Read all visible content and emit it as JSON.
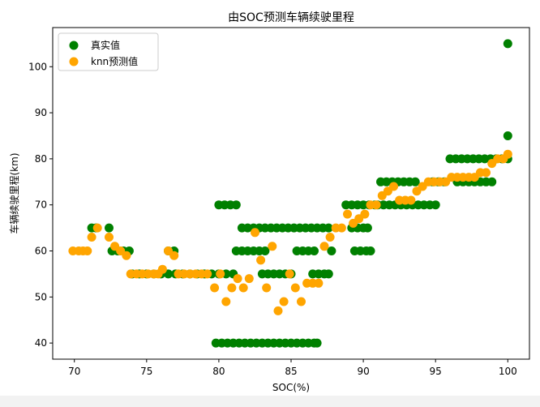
{
  "chart_data": {
    "type": "scatter",
    "title": "由SOC预测车辆续驶里程",
    "xlabel": "SOC(%)",
    "ylabel": "车辆续驶里程(km)",
    "xlim": [
      68.5,
      101.5
    ],
    "ylim": [
      36.5,
      108.5
    ],
    "xticks": [
      70,
      75,
      80,
      85,
      90,
      95,
      100
    ],
    "yticks": [
      40,
      50,
      60,
      70,
      80,
      90,
      100
    ],
    "grid": false,
    "legend_position": "upper-left",
    "series": [
      {
        "name": "真实值",
        "color": "#008000",
        "points": [
          [
            71.2,
            65
          ],
          [
            71.5,
            65
          ],
          [
            72.4,
            65
          ],
          [
            72.6,
            60
          ],
          [
            73.0,
            60
          ],
          [
            73.4,
            60
          ],
          [
            73.8,
            60
          ],
          [
            76.5,
            60
          ],
          [
            76.9,
            60
          ],
          [
            74.0,
            55
          ],
          [
            74.5,
            55
          ],
          [
            75.0,
            55
          ],
          [
            75.5,
            55
          ],
          [
            76.0,
            55
          ],
          [
            76.5,
            55
          ],
          [
            77.0,
            55
          ],
          [
            77.5,
            55
          ],
          [
            78.0,
            55
          ],
          [
            78.5,
            55
          ],
          [
            79.0,
            55
          ],
          [
            79.5,
            55
          ],
          [
            80.0,
            55
          ],
          [
            80.5,
            55
          ],
          [
            81.0,
            55
          ],
          [
            80.0,
            70
          ],
          [
            80.4,
            70
          ],
          [
            80.8,
            70
          ],
          [
            81.2,
            70
          ],
          [
            79.8,
            40
          ],
          [
            80.2,
            40
          ],
          [
            80.6,
            40
          ],
          [
            81.0,
            40
          ],
          [
            81.4,
            40
          ],
          [
            81.8,
            40
          ],
          [
            82.2,
            40
          ],
          [
            82.6,
            40
          ],
          [
            83.0,
            40
          ],
          [
            83.4,
            40
          ],
          [
            83.8,
            40
          ],
          [
            84.2,
            40
          ],
          [
            84.6,
            40
          ],
          [
            85.0,
            40
          ],
          [
            85.4,
            40
          ],
          [
            85.8,
            40
          ],
          [
            86.2,
            40
          ],
          [
            86.6,
            40
          ],
          [
            86.8,
            40
          ],
          [
            81.2,
            60
          ],
          [
            81.6,
            60
          ],
          [
            82.0,
            60
          ],
          [
            82.4,
            60
          ],
          [
            82.8,
            60
          ],
          [
            83.2,
            60
          ],
          [
            81.6,
            65
          ],
          [
            82.0,
            65
          ],
          [
            82.4,
            65
          ],
          [
            82.8,
            65
          ],
          [
            83.2,
            65
          ],
          [
            83.6,
            65
          ],
          [
            84.0,
            65
          ],
          [
            84.4,
            65
          ],
          [
            84.8,
            65
          ],
          [
            85.2,
            65
          ],
          [
            85.6,
            65
          ],
          [
            86.0,
            65
          ],
          [
            86.4,
            65
          ],
          [
            86.8,
            65
          ],
          [
            87.2,
            65
          ],
          [
            87.6,
            65
          ],
          [
            83.0,
            55
          ],
          [
            83.4,
            55
          ],
          [
            83.8,
            55
          ],
          [
            84.2,
            55
          ],
          [
            84.6,
            55
          ],
          [
            85.0,
            55
          ],
          [
            85.4,
            60
          ],
          [
            85.8,
            60
          ],
          [
            86.2,
            60
          ],
          [
            86.6,
            60
          ],
          [
            86.5,
            55
          ],
          [
            86.9,
            55
          ],
          [
            87.3,
            55
          ],
          [
            87.6,
            55
          ],
          [
            87.8,
            60
          ],
          [
            88.8,
            70
          ],
          [
            89.2,
            70
          ],
          [
            89.6,
            70
          ],
          [
            90.0,
            70
          ],
          [
            90.4,
            70
          ],
          [
            90.8,
            70
          ],
          [
            89.2,
            65
          ],
          [
            89.6,
            65
          ],
          [
            90.0,
            65
          ],
          [
            90.3,
            65
          ],
          [
            89.4,
            60
          ],
          [
            89.8,
            60
          ],
          [
            90.2,
            60
          ],
          [
            90.5,
            60
          ],
          [
            91.2,
            75
          ],
          [
            91.6,
            75
          ],
          [
            92.0,
            75
          ],
          [
            92.4,
            75
          ],
          [
            92.8,
            75
          ],
          [
            93.2,
            75
          ],
          [
            93.6,
            75
          ],
          [
            91.0,
            70
          ],
          [
            91.4,
            70
          ],
          [
            91.8,
            70
          ],
          [
            92.2,
            70
          ],
          [
            92.6,
            70
          ],
          [
            93.0,
            70
          ],
          [
            93.4,
            70
          ],
          [
            93.8,
            70
          ],
          [
            94.2,
            70
          ],
          [
            94.6,
            70
          ],
          [
            95.0,
            70
          ],
          [
            94.8,
            75
          ],
          [
            95.2,
            75
          ],
          [
            95.6,
            75
          ],
          [
            96.0,
            80
          ],
          [
            96.4,
            80
          ],
          [
            96.8,
            80
          ],
          [
            97.2,
            80
          ],
          [
            97.6,
            80
          ],
          [
            98.0,
            80
          ],
          [
            98.4,
            80
          ],
          [
            98.8,
            80
          ],
          [
            96.5,
            75
          ],
          [
            96.9,
            75
          ],
          [
            97.3,
            75
          ],
          [
            97.7,
            75
          ],
          [
            98.1,
            75
          ],
          [
            98.5,
            75
          ],
          [
            98.9,
            75
          ],
          [
            99.2,
            80
          ],
          [
            99.6,
            80
          ],
          [
            100.0,
            80
          ],
          [
            100.0,
            85
          ],
          [
            100.0,
            105
          ]
        ]
      },
      {
        "name": "knn预测值",
        "color": "#ffa500",
        "points": [
          [
            69.9,
            60
          ],
          [
            70.3,
            60
          ],
          [
            70.6,
            60
          ],
          [
            70.9,
            60
          ],
          [
            71.2,
            63
          ],
          [
            71.6,
            65
          ],
          [
            72.4,
            63
          ],
          [
            72.8,
            61
          ],
          [
            73.2,
            60
          ],
          [
            73.6,
            59
          ],
          [
            73.9,
            55
          ],
          [
            74.3,
            55
          ],
          [
            74.7,
            55
          ],
          [
            75.1,
            55
          ],
          [
            75.5,
            55
          ],
          [
            75.8,
            55
          ],
          [
            76.1,
            56
          ],
          [
            76.5,
            60
          ],
          [
            76.9,
            59
          ],
          [
            77.2,
            55
          ],
          [
            77.6,
            55
          ],
          [
            78.0,
            55
          ],
          [
            78.4,
            55
          ],
          [
            78.8,
            55
          ],
          [
            79.2,
            55
          ],
          [
            79.7,
            52
          ],
          [
            80.1,
            55
          ],
          [
            80.5,
            49
          ],
          [
            80.9,
            52
          ],
          [
            81.3,
            54
          ],
          [
            81.7,
            52
          ],
          [
            82.1,
            54
          ],
          [
            82.5,
            64
          ],
          [
            82.9,
            58
          ],
          [
            83.3,
            52
          ],
          [
            83.7,
            61
          ],
          [
            84.1,
            47
          ],
          [
            84.5,
            49
          ],
          [
            84.9,
            55
          ],
          [
            85.3,
            52
          ],
          [
            85.7,
            49
          ],
          [
            86.1,
            53
          ],
          [
            86.5,
            53
          ],
          [
            86.9,
            53
          ],
          [
            87.3,
            61
          ],
          [
            87.7,
            63
          ],
          [
            88.1,
            65
          ],
          [
            88.5,
            65
          ],
          [
            88.9,
            68
          ],
          [
            89.3,
            66
          ],
          [
            89.7,
            67
          ],
          [
            90.1,
            68
          ],
          [
            90.5,
            70
          ],
          [
            90.9,
            70
          ],
          [
            91.3,
            72
          ],
          [
            91.7,
            73
          ],
          [
            92.1,
            74
          ],
          [
            92.5,
            71
          ],
          [
            92.9,
            71
          ],
          [
            93.3,
            71
          ],
          [
            93.7,
            73
          ],
          [
            94.1,
            74
          ],
          [
            94.5,
            75
          ],
          [
            94.9,
            75
          ],
          [
            95.3,
            75
          ],
          [
            95.7,
            75
          ],
          [
            96.1,
            76
          ],
          [
            96.5,
            76
          ],
          [
            96.9,
            76
          ],
          [
            97.3,
            76
          ],
          [
            97.7,
            76
          ],
          [
            98.1,
            77
          ],
          [
            98.5,
            77
          ],
          [
            98.9,
            79
          ],
          [
            99.3,
            80
          ],
          [
            99.7,
            80
          ],
          [
            100.0,
            81
          ]
        ]
      }
    ]
  }
}
